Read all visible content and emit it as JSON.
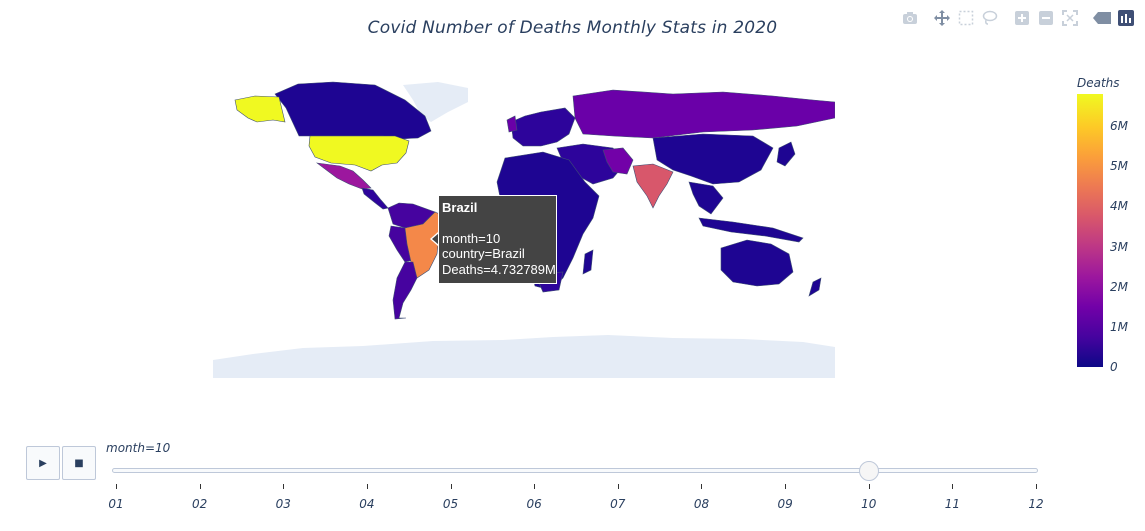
{
  "chart_data": {
    "type": "choropleth",
    "title": "Covid Number of Deaths Monthly Stats in 2020",
    "colorbar": {
      "title": "Deaths",
      "tick_labels": [
        "0",
        "1M",
        "2M",
        "3M",
        "4M",
        "5M",
        "6M"
      ],
      "tick_values": [
        0,
        1000000,
        2000000,
        3000000,
        4000000,
        5000000,
        6000000
      ],
      "range": [
        0,
        6800000
      ],
      "colorscale": [
        "#0d0887",
        "#46039f",
        "#7201a8",
        "#9c179e",
        "#bd3786",
        "#d8576b",
        "#ed7953",
        "#fb9f3a",
        "#fdca26",
        "#f0f921"
      ]
    },
    "regions": [
      {
        "country": "United States",
        "deaths": 6800000
      },
      {
        "country": "Brazil",
        "deaths": 4732789
      },
      {
        "country": "India",
        "deaths": 3300000
      },
      {
        "country": "Mexico",
        "deaths": 2600000
      },
      {
        "country": "Colombia",
        "deaths": 1100000
      },
      {
        "country": "Russia",
        "deaths": 1400000
      },
      {
        "country": "Argentina",
        "deaths": 1100000
      },
      {
        "country": "Peru",
        "deaths": 1000000
      },
      {
        "country": "Iran",
        "deaths": 1200000
      },
      {
        "country": "Canada",
        "deaths": 400000
      },
      {
        "country": "China",
        "deaths": 200000
      },
      {
        "country": "Australia",
        "deaths": 100000
      }
    ],
    "animation": {
      "label_prefix": "month=",
      "current": "10",
      "steps": [
        "01",
        "02",
        "03",
        "04",
        "05",
        "06",
        "07",
        "08",
        "09",
        "10",
        "11",
        "12"
      ]
    }
  },
  "tooltip": {
    "title": "Brazil",
    "line1": "month=10",
    "line2": "country=Brazil",
    "line3": "Deaths=4.732789M"
  },
  "controls": {
    "play": "▶",
    "stop": "■",
    "slider_label": "month=10"
  },
  "modebar": [
    "camera-icon",
    "pan-icon",
    "box-select-icon",
    "lasso-icon",
    "zoom-in-icon",
    "zoom-out-icon",
    "reset-icon",
    "hover-icon",
    "plotly-logo-icon"
  ]
}
